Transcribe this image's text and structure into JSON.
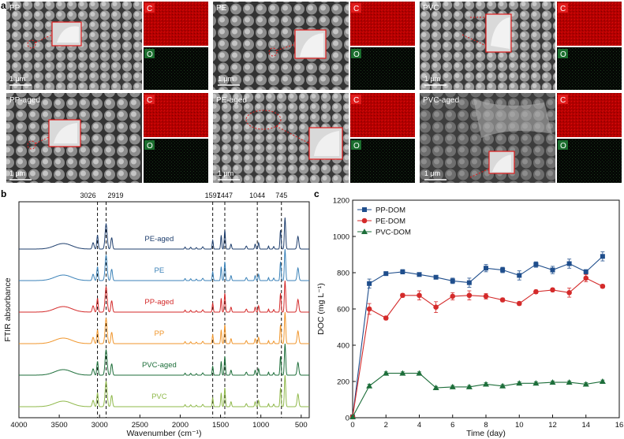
{
  "figure": {
    "panel_a_letter": "a",
    "panel_b_letter": "b",
    "panel_c_letter": "c"
  },
  "sem_panels": [
    {
      "label": "PP",
      "scale": "1 μm",
      "element_top": "C",
      "element_bottom": "O"
    },
    {
      "label": "PE",
      "scale": "1 μm",
      "element_top": "C",
      "element_bottom": "O"
    },
    {
      "label": "PVC",
      "scale": "1 μm",
      "element_top": "C",
      "element_bottom": "O"
    },
    {
      "label": "PP-aged",
      "scale": "1 μm",
      "element_top": "C",
      "element_bottom": "O"
    },
    {
      "label": "PE-aged",
      "scale": "1 μm",
      "element_top": "C",
      "element_bottom": "O"
    },
    {
      "label": "PVC-aged",
      "scale": "1 μm",
      "element_top": "C",
      "element_bottom": "O"
    }
  ],
  "chart_data": [
    {
      "type": "line",
      "panel": "b",
      "xlabel": "Wavenumber (cm⁻¹)",
      "ylabel": "FTIR absorbance",
      "xlim": [
        4000,
        400
      ],
      "xticks": [
        4000,
        3500,
        3000,
        2500,
        2000,
        1500,
        1000,
        500
      ],
      "peak_markers": [
        3026,
        2919,
        1597,
        1447,
        1044,
        745
      ],
      "series": [
        {
          "name": "PE-aged",
          "color": "#1f3f6e",
          "offset": 5
        },
        {
          "name": "PE",
          "color": "#3b82b8",
          "offset": 4
        },
        {
          "name": "PP-aged",
          "color": "#d42a2a",
          "offset": 3
        },
        {
          "name": "PP",
          "color": "#f0962c",
          "offset": 2
        },
        {
          "name": "PVC-aged",
          "color": "#1d6e3a",
          "offset": 1
        },
        {
          "name": "PVC",
          "color": "#8fb84a",
          "offset": 0
        }
      ]
    },
    {
      "type": "line",
      "panel": "c",
      "xlabel": "Time (day)",
      "ylabel": "DOC (mg L⁻¹)",
      "xlim": [
        0,
        16
      ],
      "ylim": [
        0,
        1200
      ],
      "xticks": [
        0,
        2,
        4,
        6,
        8,
        10,
        12,
        14,
        16
      ],
      "yticks": [
        0,
        200,
        400,
        600,
        800,
        1000,
        1200
      ],
      "x": [
        0,
        1,
        2,
        3,
        4,
        5,
        6,
        7,
        8,
        9,
        10,
        11,
        12,
        13,
        14,
        15
      ],
      "series": [
        {
          "name": "PP-DOM",
          "color": "#1f4e8c",
          "marker": "square",
          "values": [
            5,
            740,
            795,
            805,
            790,
            775,
            755,
            745,
            825,
            815,
            785,
            845,
            815,
            850,
            805,
            890
          ],
          "errors": [
            0,
            25,
            10,
            12,
            10,
            10,
            15,
            25,
            20,
            15,
            25,
            15,
            20,
            25,
            12,
            25
          ]
        },
        {
          "name": "PE-DOM",
          "color": "#d42a2a",
          "marker": "circle",
          "values": [
            5,
            600,
            550,
            675,
            675,
            610,
            670,
            675,
            670,
            650,
            630,
            695,
            705,
            690,
            770,
            725
          ],
          "errors": [
            0,
            30,
            10,
            10,
            25,
            30,
            20,
            25,
            15,
            10,
            10,
            10,
            10,
            25,
            20,
            10
          ]
        },
        {
          "name": "PVC-DOM",
          "color": "#1d6e3a",
          "marker": "triangle",
          "values": [
            5,
            175,
            245,
            245,
            245,
            165,
            170,
            170,
            185,
            175,
            190,
            190,
            195,
            195,
            185,
            200
          ],
          "errors": [
            0,
            10,
            8,
            8,
            8,
            8,
            8,
            8,
            8,
            8,
            8,
            8,
            8,
            8,
            8,
            8
          ]
        }
      ]
    }
  ]
}
